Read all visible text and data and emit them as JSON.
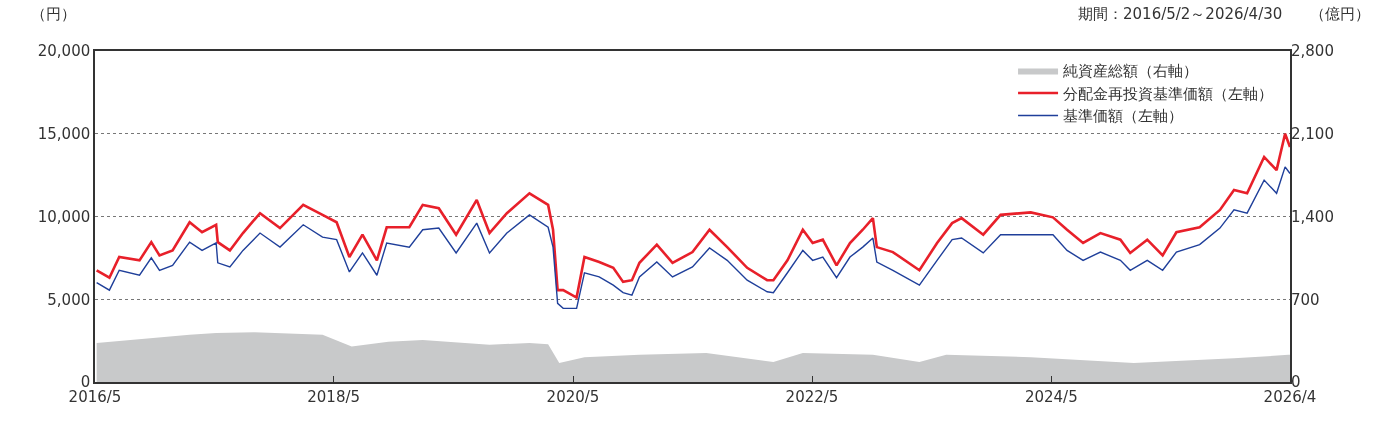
{
  "chart_data": {
    "type": "line",
    "ylabel": "（円）",
    "y2label": "（億円）",
    "annotations": [
      "期間：2016/5/2～2026/4/30"
    ],
    "series": [
      {
        "name": "純資産総額（右軸）",
        "type": "area",
        "axis": "y2",
        "color": "#c8c9ca",
        "x": [
          "2016-05-07",
          "2017-02-15",
          "2017-05-07",
          "2017-09-01",
          "2018-03-28",
          "2018-06-25",
          "2018-10-15",
          "2019-01-28",
          "2019-08-20",
          "2019-12-20",
          "2020-02-15",
          "2020-03-20",
          "2020-06-05",
          "2020-11-20",
          "2021-06-12",
          "2022-01-03",
          "2022-04-03",
          "2022-11-03",
          "2023-03-25",
          "2023-06-15",
          "2024-02-28",
          "2025-01-08",
          "2025-11-10",
          "2026-04-25",
          "2026-04-30"
        ],
        "values": [
          330,
          400,
          415,
          420,
          400,
          300,
          340,
          355,
          315,
          330,
          320,
          160,
          210,
          230,
          245,
          170,
          245,
          230,
          170,
          230,
          210,
          160,
          200,
          230,
          230
        ]
      },
      {
        "name": "分配金再投資基準価額（左軸）",
        "color": "#e8202a",
        "x": [
          "2016-05-07",
          "2016-06-15",
          "2016-07-15",
          "2016-09-15",
          "2016-10-21",
          "2016-11-15",
          "2016-12-25",
          "2017-02-15",
          "2017-03-25",
          "2017-05-07",
          "2017-05-12",
          "2017-06-18",
          "2017-07-28",
          "2017-09-18",
          "2017-11-18",
          "2018-01-28",
          "2018-03-28",
          "2018-05-10",
          "2018-06-18",
          "2018-07-28",
          "2018-09-10",
          "2018-10-10",
          "2018-12-18",
          "2019-01-28",
          "2019-03-18",
          "2019-05-10",
          "2019-07-12",
          "2019-08-20",
          "2019-10-12",
          "2019-12-20",
          "2020-02-15",
          "2020-03-01",
          "2020-03-15",
          "2020-04-01",
          "2020-05-12",
          "2020-06-05",
          "2020-07-20",
          "2020-09-01",
          "2020-10-01",
          "2020-10-28",
          "2020-11-20",
          "2021-01-12",
          "2021-03-01",
          "2021-05-01",
          "2021-06-22",
          "2021-08-15",
          "2021-10-15",
          "2021-12-15",
          "2022-01-03",
          "2022-02-15",
          "2022-04-03",
          "2022-05-03",
          "2022-06-03",
          "2022-07-15",
          "2022-08-25",
          "2022-10-03",
          "2022-11-03",
          "2022-11-15",
          "2023-01-03",
          "2023-03-25",
          "2023-05-18",
          "2023-07-03",
          "2023-08-01",
          "2023-10-06",
          "2023-11-28",
          "2024-02-28",
          "2024-05-06",
          "2024-06-18",
          "2024-08-06",
          "2024-09-28",
          "2024-11-28",
          "2024-12-28",
          "2025-02-18",
          "2025-04-06",
          "2025-05-18",
          "2025-07-28",
          "2025-09-28",
          "2025-11-10",
          "2025-12-20",
          "2026-02-10",
          "2026-03-20",
          "2026-04-15",
          "2026-04-30"
        ],
        "values": [
          6750,
          6300,
          7550,
          7350,
          8450,
          7650,
          7950,
          9650,
          9050,
          9500,
          8450,
          7950,
          9000,
          10200,
          9300,
          10700,
          10100,
          9650,
          7550,
          8900,
          7350,
          9350,
          9350,
          10700,
          10500,
          8900,
          11000,
          9000,
          10200,
          11400,
          10700,
          9200,
          5550,
          5550,
          5100,
          7550,
          7250,
          6900,
          6050,
          6150,
          7200,
          8300,
          7200,
          7850,
          9200,
          8150,
          6900,
          6150,
          6150,
          7350,
          9200,
          8400,
          8600,
          7050,
          8400,
          9200,
          9900,
          8150,
          7850,
          6750,
          8400,
          9600,
          9900,
          8900,
          10100,
          10250,
          9950,
          9200,
          8400,
          9000,
          8600,
          7800,
          8600,
          7650,
          9050,
          9350,
          10400,
          11600,
          11400,
          13600,
          12800,
          15000,
          14200
        ]
      },
      {
        "name": "基準価額（左軸）",
        "color": "#1f3f9a",
        "x": [
          "2016-05-07",
          "2016-06-15",
          "2016-07-15",
          "2016-09-15",
          "2016-10-21",
          "2016-11-15",
          "2016-12-25",
          "2017-02-15",
          "2017-03-25",
          "2017-05-07",
          "2017-05-12",
          "2017-06-18",
          "2017-07-28",
          "2017-09-18",
          "2017-11-18",
          "2018-01-28",
          "2018-03-28",
          "2018-05-10",
          "2018-06-18",
          "2018-07-28",
          "2018-09-10",
          "2018-10-10",
          "2018-12-18",
          "2019-01-28",
          "2019-03-18",
          "2019-05-10",
          "2019-07-12",
          "2019-08-20",
          "2019-10-12",
          "2019-12-20",
          "2020-02-15",
          "2020-03-01",
          "2020-03-15",
          "2020-04-01",
          "2020-05-12",
          "2020-06-05",
          "2020-07-20",
          "2020-09-01",
          "2020-10-01",
          "2020-10-28",
          "2020-11-20",
          "2021-01-12",
          "2021-03-01",
          "2021-05-01",
          "2021-06-22",
          "2021-08-15",
          "2021-10-15",
          "2021-12-15",
          "2022-01-03",
          "2022-02-15",
          "2022-04-03",
          "2022-05-03",
          "2022-06-03",
          "2022-07-15",
          "2022-08-25",
          "2022-10-03",
          "2022-11-03",
          "2022-11-15",
          "2023-01-03",
          "2023-03-25",
          "2023-05-18",
          "2023-07-03",
          "2023-08-01",
          "2023-10-06",
          "2023-11-28",
          "2024-02-28",
          "2024-05-06",
          "2024-06-18",
          "2024-08-06",
          "2024-09-28",
          "2024-11-28",
          "2024-12-28",
          "2025-02-18",
          "2025-04-06",
          "2025-05-18",
          "2025-07-28",
          "2025-09-28",
          "2025-11-10",
          "2025-12-20",
          "2026-02-10",
          "2026-03-20",
          "2026-04-15",
          "2026-04-30"
        ],
        "values": [
          6000,
          5550,
          6750,
          6450,
          7500,
          6750,
          7050,
          8450,
          7950,
          8400,
          7200,
          6950,
          7950,
          9000,
          8150,
          9500,
          8750,
          8600,
          6650,
          7800,
          6450,
          8400,
          8150,
          9200,
          9300,
          7800,
          9600,
          7800,
          9000,
          10100,
          9350,
          8150,
          4750,
          4450,
          4450,
          6600,
          6350,
          5850,
          5400,
          5250,
          6350,
          7250,
          6350,
          6950,
          8100,
          7350,
          6150,
          5450,
          5400,
          6600,
          7950,
          7350,
          7550,
          6300,
          7550,
          8150,
          8700,
          7250,
          6750,
          5850,
          7350,
          8600,
          8700,
          7800,
          8900,
          8900,
          8900,
          7950,
          7350,
          7850,
          7350,
          6750,
          7350,
          6750,
          7850,
          8300,
          9300,
          10400,
          10200,
          12200,
          11400,
          13000,
          12600
        ]
      }
    ],
    "xlim": [
      "2016-05-02",
      "2026-04-30"
    ],
    "xticks": [
      {
        "value": "2016-05-02",
        "label": "2016/5"
      },
      {
        "value": "2018-05-01",
        "label": "2018/5"
      },
      {
        "value": "2020-05-01",
        "label": "2020/5"
      },
      {
        "value": "2022-05-01",
        "label": "2022/5"
      },
      {
        "value": "2024-05-01",
        "label": "2024/5"
      },
      {
        "value": "2026-04-30",
        "label": "2026/4"
      }
    ],
    "ylim": [
      0,
      20000
    ],
    "yticks": [
      0,
      {
        "value": 5000,
        "label": "5,000"
      },
      {
        "value": 10000,
        "label": "10,000"
      },
      {
        "value": 15000,
        "label": "15,000"
      },
      {
        "value": 20000,
        "label": "20,000"
      }
    ],
    "y2lim": [
      0,
      2800
    ],
    "y2ticks": [
      0,
      700,
      {
        "value": 1400,
        "label": "1,400"
      },
      {
        "value": 2100,
        "label": "2,100"
      },
      {
        "value": 2800,
        "label": "2,800"
      }
    ],
    "grid": "y",
    "legend": "top right",
    "marker": "none",
    "line_style": "solid"
  }
}
